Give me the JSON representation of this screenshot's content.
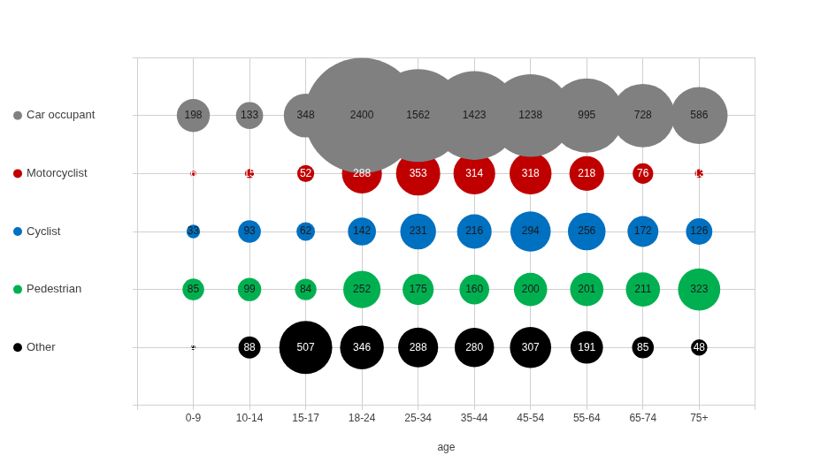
{
  "chart_data": {
    "type": "bubble",
    "x_label": "age",
    "categories": [
      "0-9",
      "10-14",
      "15-17",
      "18-24",
      "25-34",
      "35-44",
      "45-54",
      "55-64",
      "65-74",
      "75+"
    ],
    "series": [
      {
        "name": "Car occupant",
        "color": "#808080",
        "values": [
          198,
          133,
          348,
          2400,
          1562,
          1423,
          1238,
          995,
          728,
          586
        ]
      },
      {
        "name": "Motorcyclist",
        "color": "#c00000",
        "values": [
          6,
          15,
          52,
          288,
          353,
          314,
          318,
          218,
          76,
          13
        ]
      },
      {
        "name": "Cyclist",
        "color": "#0070c0",
        "values": [
          33,
          93,
          62,
          142,
          231,
          216,
          294,
          256,
          172,
          126
        ]
      },
      {
        "name": "Pedestrian",
        "color": "#00b050",
        "values": [
          85,
          99,
          84,
          252,
          175,
          160,
          200,
          201,
          211,
          323
        ]
      },
      {
        "name": "Other",
        "color": "#000000",
        "values": [
          4,
          88,
          507,
          346,
          288,
          280,
          307,
          191,
          85,
          48
        ]
      }
    ],
    "data_labels": true,
    "grid": true
  }
}
